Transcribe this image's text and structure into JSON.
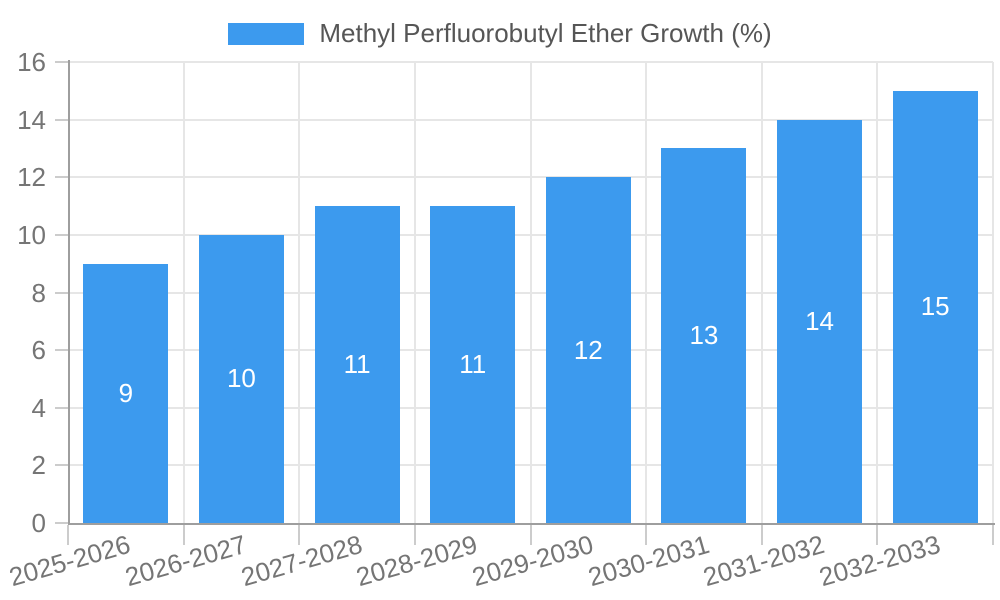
{
  "legend": {
    "label": "Methyl Perfluorobutyl Ether Growth (%)"
  },
  "chart_data": {
    "type": "bar",
    "title": "Methyl Perfluorobutyl Ether Growth (%)",
    "categories": [
      "2025-2026",
      "2026-2027",
      "2027-2028",
      "2028-2029",
      "2029-2030",
      "2030-2031",
      "2031-2032",
      "2032-2033"
    ],
    "values": [
      9,
      10,
      11,
      11,
      12,
      13,
      14,
      15
    ],
    "bar_labels": [
      "9",
      "10",
      "11",
      "11",
      "12",
      "13",
      "14",
      "15"
    ],
    "xlabel": "",
    "ylabel": "",
    "ylim": [
      0,
      16
    ],
    "yticks": [
      0,
      2,
      4,
      6,
      8,
      10,
      12,
      14,
      16
    ],
    "grid": true,
    "legend_position": "top-center",
    "colors": {
      "bar": "#3C9AEE",
      "axis": "#9E9E9E",
      "grid": "#E6E6E6",
      "tick": "#CCCCCC",
      "label": "#757575",
      "title": "#565656",
      "bar_value_text": "#FFFFFF"
    }
  }
}
